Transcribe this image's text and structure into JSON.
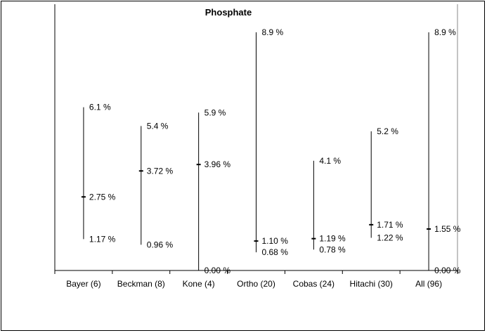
{
  "chart_data": {
    "type": "range",
    "title": "Phosphate",
    "xlabel": "",
    "ylabel": "",
    "ylim": [
      0,
      10
    ],
    "categories": [
      "Bayer (6)",
      "Beckman (8)",
      "Kone (4)",
      "Ortho (20)",
      "Cobas (24)",
      "Hitachi (30)",
      "All (96)"
    ],
    "series": [
      {
        "high": [
          6.1,
          5.4,
          5.9,
          8.9,
          4.1,
          5.2,
          8.9
        ],
        "mid": [
          2.75,
          3.72,
          3.96,
          1.1,
          1.19,
          1.71,
          1.55
        ],
        "low": [
          1.17,
          0.96,
          0.0,
          0.68,
          0.78,
          1.22,
          0.0
        ]
      }
    ],
    "labels": {
      "high": [
        "6.1 %",
        "5.4 %",
        "5.9 %",
        "8.9 %",
        "4.1 %",
        "5.2 %",
        "8.9 %"
      ],
      "mid": [
        "2.75 %",
        "3.72 %",
        "3.96 %",
        "1.10 %",
        "1.19 %",
        "1.71 %",
        "1.55 %"
      ],
      "low": [
        "1.17 %",
        "0.96 %",
        "0.00 %",
        "0.68 %",
        "0.78 %",
        "1.22 %",
        "0.00 %"
      ]
    }
  }
}
